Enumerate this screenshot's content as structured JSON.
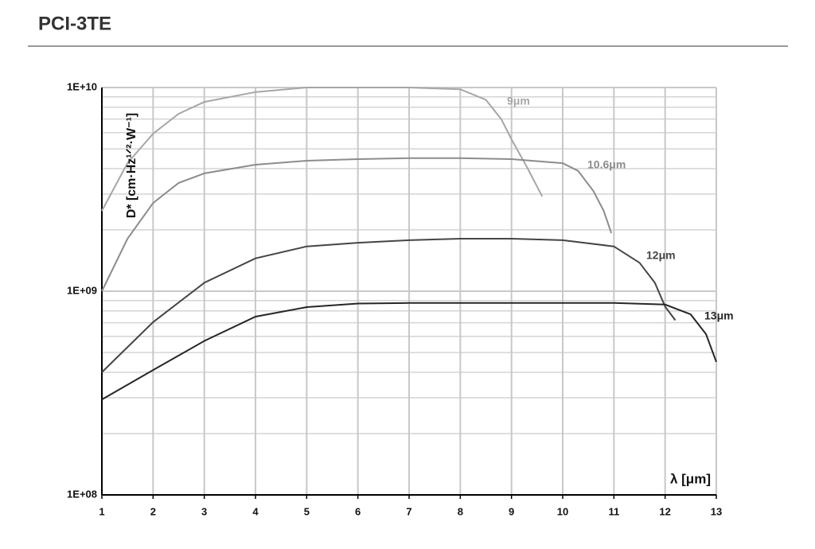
{
  "chart_data": {
    "type": "line",
    "title": "PCI-3TE",
    "y_label": "D* [cm·Hz¹ᐟ²·W⁻¹]",
    "x_label": "λ [μm]",
    "log_y": true,
    "grid": true,
    "xlim": [
      1,
      13
    ],
    "xticks": [
      1,
      2,
      3,
      4,
      5,
      6,
      7,
      8,
      9,
      10,
      11,
      12,
      13
    ],
    "ylim": [
      100000000,
      10000000000
    ],
    "yticks": [
      {
        "value": 100000000,
        "label": "1E+08"
      },
      {
        "value": 1000000000,
        "label": "1E+09"
      },
      {
        "value": 10000000000,
        "label": "1E+10"
      }
    ],
    "y_minor_ticks": [
      200000000,
      300000000,
      400000000,
      500000000,
      600000000,
      700000000,
      800000000,
      900000000,
      2000000000,
      3000000000,
      4000000000,
      5000000000,
      6000000000,
      7000000000,
      8000000000,
      9000000000
    ],
    "series": [
      {
        "name": "9μm",
        "color": "#a6a6a6",
        "x": [
          1,
          1.5,
          2,
          2.5,
          3,
          4,
          5,
          6,
          7,
          8,
          8.5,
          8.8,
          9,
          9.3,
          9.6
        ],
        "values": [
          2480000000,
          4260000000,
          5930000000,
          7430000000,
          8500000000,
          9500000000,
          10000000000,
          10000000000,
          10000000000,
          9800000000,
          8700000000,
          7000000000,
          5570000000,
          4070000000,
          2920000000
        ]
      },
      {
        "name": "10.6μm",
        "color": "#8c8c8c",
        "x": [
          1,
          1.5,
          2,
          2.5,
          3,
          4,
          5,
          6,
          7,
          8,
          9,
          10,
          10.3,
          10.6,
          10.8,
          10.95
        ],
        "values": [
          1000000000,
          1810000000,
          2710000000,
          3400000000,
          3790000000,
          4180000000,
          4370000000,
          4450000000,
          4500000000,
          4500000000,
          4450000000,
          4250000000,
          3900000000,
          3100000000,
          2480000000,
          1930000000
        ]
      },
      {
        "name": "12μm",
        "color": "#454545",
        "x": [
          1,
          2,
          3,
          4,
          5,
          6,
          7,
          8,
          9,
          10,
          11,
          11.5,
          11.8,
          12,
          12.2
        ],
        "values": [
          400000000,
          705000000,
          1100000000,
          1450000000,
          1660000000,
          1730000000,
          1780000000,
          1810000000,
          1810000000,
          1780000000,
          1660000000,
          1380000000,
          1100000000,
          840000000,
          720000000
        ]
      },
      {
        "name": "13μm",
        "color": "#262626",
        "x": [
          1,
          2,
          3,
          4,
          5,
          6,
          7,
          8,
          9,
          10,
          11,
          12,
          12.5,
          12.8,
          13
        ],
        "values": [
          294000000,
          410000000,
          570000000,
          750000000,
          835000000,
          870000000,
          875000000,
          875000000,
          875000000,
          875000000,
          875000000,
          860000000,
          770000000,
          615000000,
          450000000
        ]
      }
    ]
  }
}
